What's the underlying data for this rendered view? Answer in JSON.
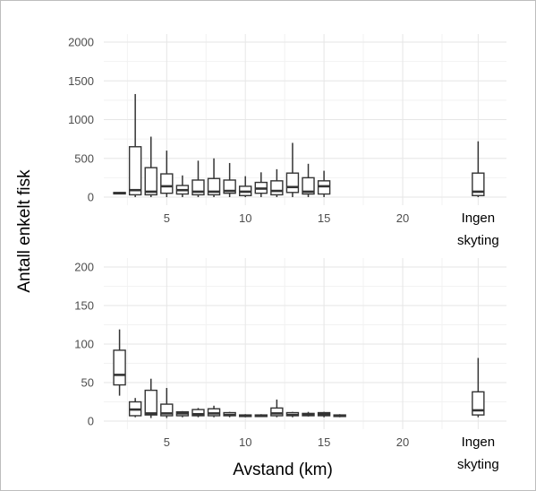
{
  "chart_data": {
    "type": "box",
    "ylabel": "Antall enkelt fisk",
    "xlabel": "Avstand (km)",
    "x_ticks": [
      5,
      10,
      15,
      20
    ],
    "extra_category": {
      "line1": "Ingen",
      "line2": "skyting",
      "x": 24.8
    },
    "grid": true,
    "panels": [
      {
        "ylim": [
          0,
          2000
        ],
        "y_ticks": [
          0,
          500,
          1000,
          1500,
          2000
        ],
        "boxes": [
          {
            "x": 2,
            "min": 40,
            "q1": 42,
            "median": 50,
            "q3": 60,
            "max": 65
          },
          {
            "x": 3,
            "min": 0,
            "q1": 30,
            "median": 90,
            "q3": 650,
            "max": 1330
          },
          {
            "x": 4,
            "min": 0,
            "q1": 30,
            "median": 70,
            "q3": 380,
            "max": 780
          },
          {
            "x": 5,
            "min": 0,
            "q1": 50,
            "median": 140,
            "q3": 300,
            "max": 600
          },
          {
            "x": 6,
            "min": 0,
            "q1": 40,
            "median": 90,
            "q3": 150,
            "max": 280
          },
          {
            "x": 7,
            "min": 0,
            "q1": 30,
            "median": 70,
            "q3": 220,
            "max": 470
          },
          {
            "x": 8,
            "min": 0,
            "q1": 30,
            "median": 70,
            "q3": 240,
            "max": 500
          },
          {
            "x": 9,
            "min": 0,
            "q1": 50,
            "median": 80,
            "q3": 220,
            "max": 440
          },
          {
            "x": 10,
            "min": 0,
            "q1": 20,
            "median": 70,
            "q3": 140,
            "max": 270
          },
          {
            "x": 11,
            "min": 0,
            "q1": 50,
            "median": 110,
            "q3": 190,
            "max": 320
          },
          {
            "x": 12,
            "min": 0,
            "q1": 30,
            "median": 80,
            "q3": 210,
            "max": 360
          },
          {
            "x": 13,
            "min": 0,
            "q1": 60,
            "median": 130,
            "q3": 310,
            "max": 700
          },
          {
            "x": 14,
            "min": 0,
            "q1": 40,
            "median": 70,
            "q3": 250,
            "max": 430
          },
          {
            "x": 15,
            "min": 0,
            "q1": 40,
            "median": 140,
            "q3": 210,
            "max": 340
          },
          {
            "x": 24.8,
            "min": 0,
            "q1": 20,
            "median": 70,
            "q3": 310,
            "max": 720
          }
        ]
      },
      {
        "ylim": [
          0,
          200
        ],
        "y_ticks": [
          0,
          50,
          100,
          150,
          200
        ],
        "boxes": [
          {
            "x": 2,
            "min": 33,
            "q1": 47,
            "median": 60,
            "q3": 92,
            "max": 119
          },
          {
            "x": 3,
            "min": 5,
            "q1": 7,
            "median": 15,
            "q3": 25,
            "max": 30
          },
          {
            "x": 4,
            "min": 4,
            "q1": 8,
            "median": 10,
            "q3": 40,
            "max": 55
          },
          {
            "x": 5,
            "min": 4,
            "q1": 7,
            "median": 10,
            "q3": 22,
            "max": 43
          },
          {
            "x": 6,
            "min": 5,
            "q1": 7,
            "median": 10,
            "q3": 12,
            "max": 13
          },
          {
            "x": 7,
            "min": 5,
            "q1": 7,
            "median": 9,
            "q3": 15,
            "max": 17
          },
          {
            "x": 8,
            "min": 5,
            "q1": 7,
            "median": 10,
            "q3": 16,
            "max": 20
          },
          {
            "x": 9,
            "min": 5,
            "q1": 7,
            "median": 8,
            "q3": 11,
            "max": 12
          },
          {
            "x": 10,
            "min": 5,
            "q1": 6,
            "median": 7,
            "q3": 8,
            "max": 9
          },
          {
            "x": 11,
            "min": 6,
            "q1": 6,
            "median": 7,
            "q3": 8,
            "max": 9
          },
          {
            "x": 12,
            "min": 5,
            "q1": 7,
            "median": 10,
            "q3": 17,
            "max": 28
          },
          {
            "x": 13,
            "min": 5,
            "q1": 7,
            "median": 8,
            "q3": 11,
            "max": 12
          },
          {
            "x": 14,
            "min": 6,
            "q1": 7,
            "median": 9,
            "q3": 10,
            "max": 12
          },
          {
            "x": 15,
            "min": 5,
            "q1": 7,
            "median": 9,
            "q3": 11,
            "max": 12
          },
          {
            "x": 16,
            "min": 5,
            "q1": 6,
            "median": 7,
            "q3": 8,
            "max": 9
          },
          {
            "x": 24.8,
            "min": 5,
            "q1": 8,
            "median": 14,
            "q3": 38,
            "max": 82
          }
        ]
      }
    ]
  }
}
